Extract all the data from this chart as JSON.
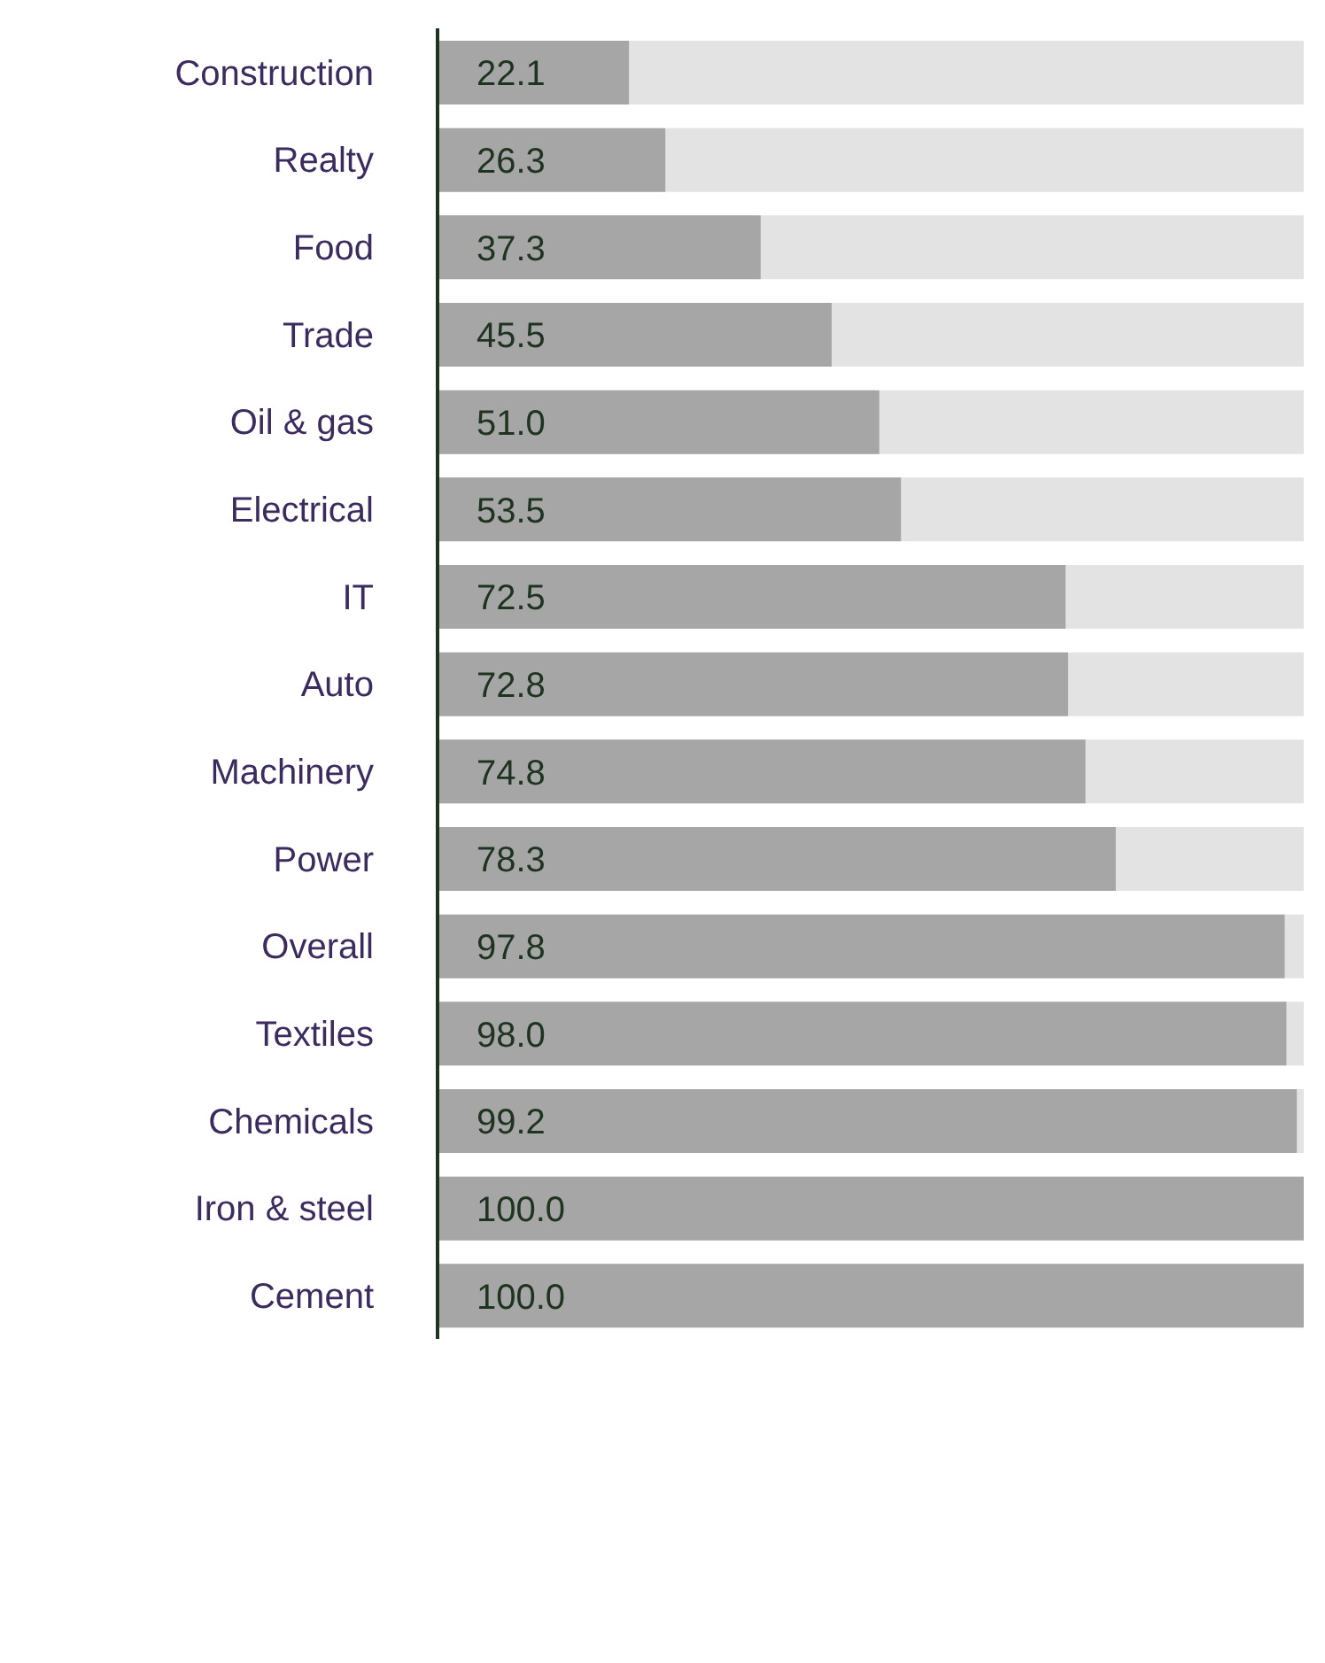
{
  "chart_data": {
    "type": "bar",
    "orientation": "horizontal",
    "categories": [
      "Construction",
      "Realty",
      "Food",
      "Trade",
      "Oil & gas",
      "Electrical",
      "IT",
      "Auto",
      "Machinery",
      "Power",
      "Overall",
      "Textiles",
      "Chemicals",
      "Iron & steel",
      "Cement"
    ],
    "values": [
      22.1,
      26.3,
      37.3,
      45.5,
      51.0,
      53.5,
      72.5,
      72.8,
      74.8,
      78.3,
      97.8,
      98.0,
      99.2,
      100.0,
      100.0
    ],
    "value_labels": [
      "22.1",
      "26.3",
      "37.3",
      "45.5",
      "51.0",
      "53.5",
      "72.5",
      "72.8",
      "74.8",
      "78.3",
      "97.8",
      "98.0",
      "99.2",
      "100.0",
      "100.0"
    ],
    "color": "#a6a6a6"
  }
}
